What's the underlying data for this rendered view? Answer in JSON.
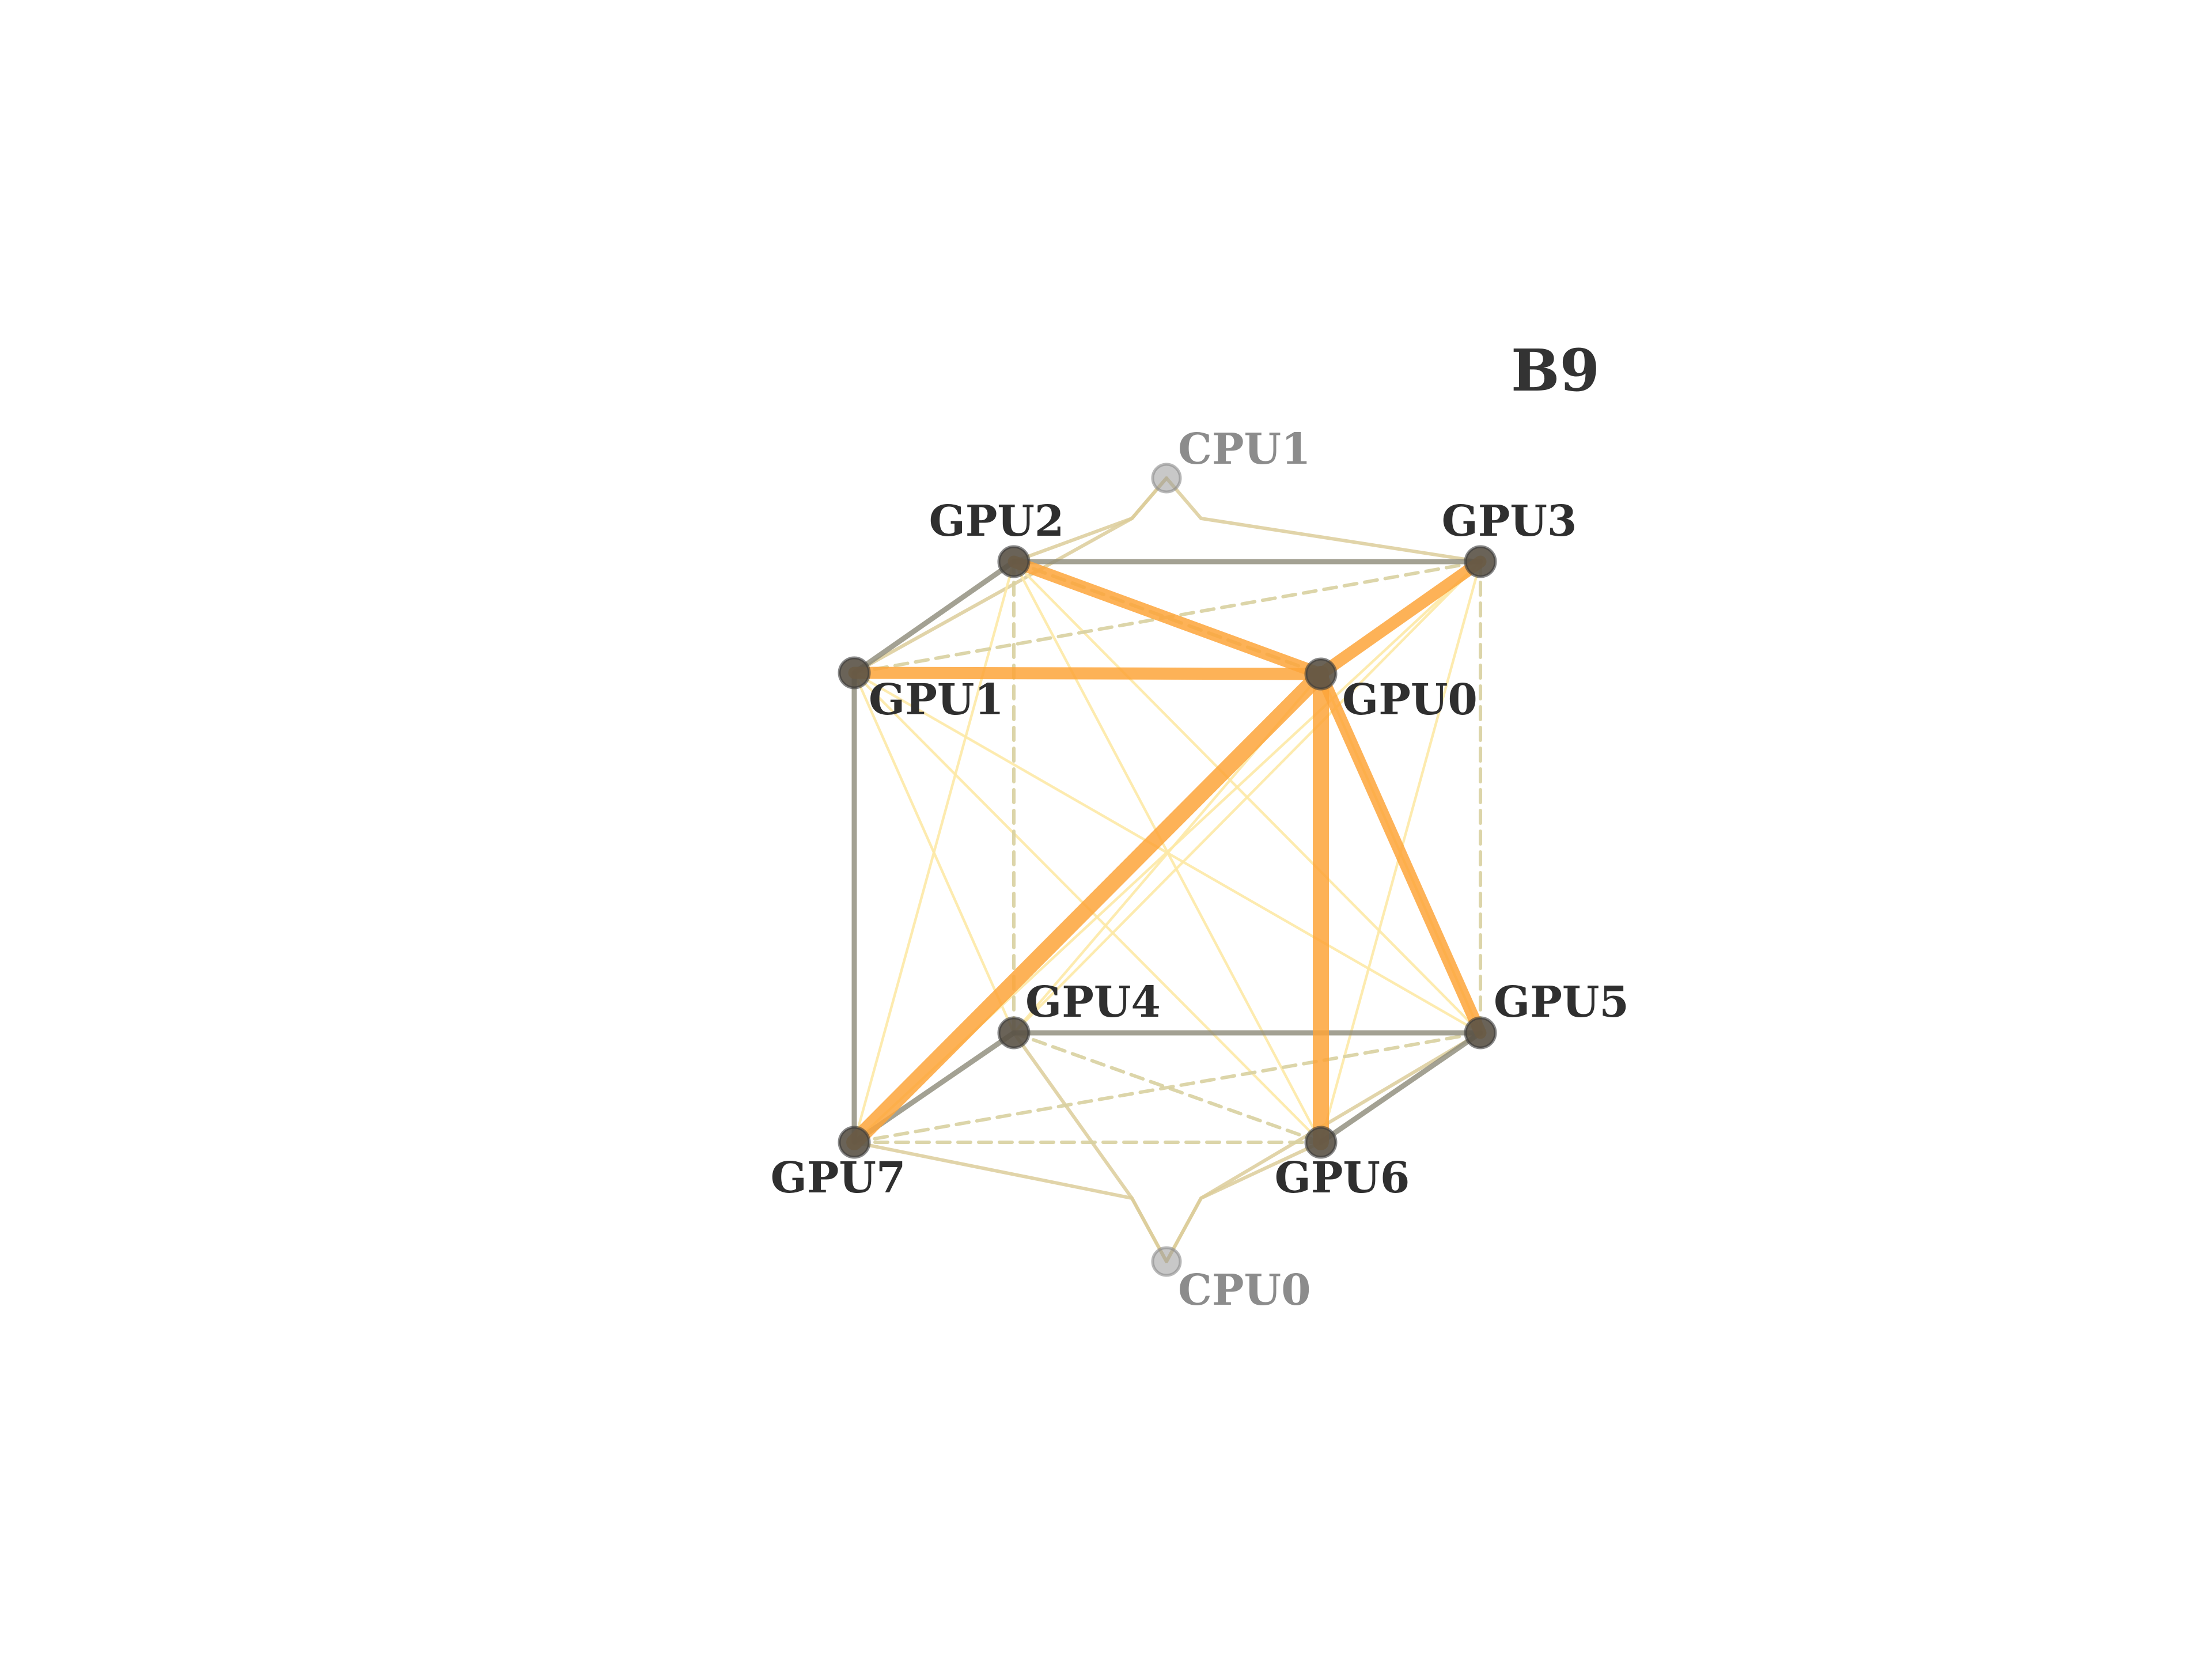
{
  "title": "B9",
  "nodes": [
    {
      "id": "GPU0",
      "label": "GPU0",
      "kind": "gpu"
    },
    {
      "id": "GPU1",
      "label": "GPU1",
      "kind": "gpu"
    },
    {
      "id": "GPU2",
      "label": "GPU2",
      "kind": "gpu"
    },
    {
      "id": "GPU3",
      "label": "GPU3",
      "kind": "gpu"
    },
    {
      "id": "GPU4",
      "label": "GPU4",
      "kind": "gpu"
    },
    {
      "id": "GPU5",
      "label": "GPU5",
      "kind": "gpu"
    },
    {
      "id": "GPU6",
      "label": "GPU6",
      "kind": "gpu"
    },
    {
      "id": "GPU7",
      "label": "GPU7",
      "kind": "gpu"
    },
    {
      "id": "CPU0",
      "label": "CPU0",
      "kind": "cpu"
    },
    {
      "id": "CPU1",
      "label": "CPU1",
      "kind": "cpu"
    }
  ],
  "edge_styles": {
    "hardware_link": {
      "color": "#8c8a78",
      "dashed": false
    },
    "dashed_link": {
      "color": "#d8d0a0",
      "dashed": true
    },
    "cpu_link": {
      "color": "#dccd9a",
      "dashed": false
    },
    "light_traffic": {
      "color": "#fde9a6",
      "dashed": false
    },
    "heavy_traffic": {
      "color": "#fda53a",
      "dashed": false
    }
  },
  "edges": [
    {
      "from": "GPU1",
      "to": "GPU2",
      "style": "hardware_link"
    },
    {
      "from": "GPU2",
      "to": "GPU3",
      "style": "hardware_link"
    },
    {
      "from": "GPU1",
      "to": "GPU7",
      "style": "hardware_link"
    },
    {
      "from": "GPU7",
      "to": "GPU4",
      "style": "hardware_link"
    },
    {
      "from": "GPU4",
      "to": "GPU5",
      "style": "hardware_link"
    },
    {
      "from": "GPU5",
      "to": "GPU6",
      "style": "hardware_link"
    },
    {
      "from": "GPU2",
      "to": "GPU4",
      "style": "dashed_link"
    },
    {
      "from": "GPU3",
      "to": "GPU5",
      "style": "dashed_link"
    },
    {
      "from": "GPU7",
      "to": "GPU6",
      "style": "dashed_link"
    },
    {
      "from": "GPU4",
      "to": "GPU6",
      "style": "dashed_link"
    },
    {
      "from": "GPU7",
      "to": "GPU5",
      "style": "dashed_link"
    },
    {
      "from": "GPU1",
      "to": "GPU3",
      "style": "dashed_link"
    },
    {
      "from": "GPU2",
      "to": "GPU0",
      "style": "dashed_link"
    },
    {
      "from": "GPU3",
      "to": "CPU1",
      "style": "cpu_link"
    },
    {
      "from": "GPU2",
      "to": "CPU1",
      "style": "cpu_link"
    },
    {
      "from": "GPU1",
      "to": "CPU1",
      "style": "cpu_link"
    },
    {
      "from": "GPU7",
      "to": "CPU0",
      "style": "cpu_link"
    },
    {
      "from": "GPU4",
      "to": "CPU0",
      "style": "cpu_link"
    },
    {
      "from": "GPU6",
      "to": "CPU0",
      "style": "cpu_link"
    },
    {
      "from": "GPU5",
      "to": "CPU0",
      "style": "cpu_link"
    },
    {
      "from": "GPU1",
      "to": "GPU6",
      "style": "light_traffic"
    },
    {
      "from": "GPU1",
      "to": "GPU5",
      "style": "light_traffic"
    },
    {
      "from": "GPU1",
      "to": "GPU4",
      "style": "light_traffic"
    },
    {
      "from": "GPU2",
      "to": "GPU6",
      "style": "light_traffic"
    },
    {
      "from": "GPU2",
      "to": "GPU5",
      "style": "light_traffic"
    },
    {
      "from": "GPU2",
      "to": "GPU7",
      "style": "light_traffic"
    },
    {
      "from": "GPU3",
      "to": "GPU7",
      "style": "light_traffic"
    },
    {
      "from": "GPU3",
      "to": "GPU6",
      "style": "light_traffic"
    },
    {
      "from": "GPU3",
      "to": "GPU4",
      "style": "light_traffic"
    },
    {
      "from": "GPU0",
      "to": "GPU4",
      "style": "light_traffic"
    },
    {
      "from": "GPU0",
      "to": "GPU5",
      "style": "light_traffic"
    },
    {
      "from": "GPU1",
      "to": "GPU0",
      "style": "heavy_traffic",
      "weight": 3
    },
    {
      "from": "GPU2",
      "to": "GPU0",
      "style": "heavy_traffic",
      "weight": 3
    },
    {
      "from": "GPU3",
      "to": "GPU0",
      "style": "heavy_traffic",
      "weight": 3
    },
    {
      "from": "GPU0",
      "to": "GPU7",
      "style": "heavy_traffic",
      "weight": 4
    },
    {
      "from": "GPU0",
      "to": "GPU6",
      "style": "heavy_traffic",
      "weight": 4
    },
    {
      "from": "GPU0",
      "to": "GPU5",
      "style": "heavy_traffic",
      "weight": 3
    }
  ]
}
